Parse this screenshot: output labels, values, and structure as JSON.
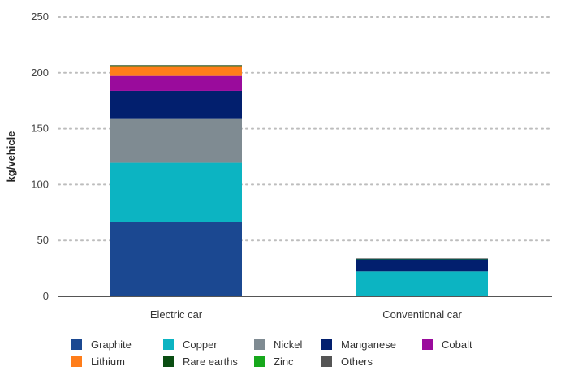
{
  "chart_data": {
    "type": "bar",
    "stacked": true,
    "title": "",
    "xlabel": "",
    "ylabel": "kg/vehicle",
    "ylim": [
      0,
      250
    ],
    "yticks": [
      0,
      50,
      100,
      150,
      200,
      250
    ],
    "grid": true,
    "legend_position": "bottom",
    "categories": [
      "Electric car",
      "Conventional car"
    ],
    "series": [
      {
        "name": "Graphite",
        "color": "#1b4891",
        "values": [
          66.3,
          0
        ]
      },
      {
        "name": "Copper",
        "color": "#0cb4c2",
        "values": [
          53.2,
          22.3
        ]
      },
      {
        "name": "Nickel",
        "color": "#7f8b92",
        "values": [
          39.9,
          0
        ]
      },
      {
        "name": "Manganese",
        "color": "#021f6e",
        "values": [
          24.5,
          11.2
        ]
      },
      {
        "name": "Cobalt",
        "color": "#9a0b9c",
        "values": [
          13.3,
          0
        ]
      },
      {
        "name": "Lithium",
        "color": "#ff7d1a",
        "values": [
          8.9,
          0
        ]
      },
      {
        "name": "Rare earths",
        "color": "#0a4d12",
        "values": [
          0.5,
          0
        ]
      },
      {
        "name": "Zinc",
        "color": "#17a81c",
        "values": [
          0.1,
          0.1
        ]
      },
      {
        "name": "Others",
        "color": "#555555",
        "values": [
          0.3,
          0.3
        ]
      }
    ]
  }
}
